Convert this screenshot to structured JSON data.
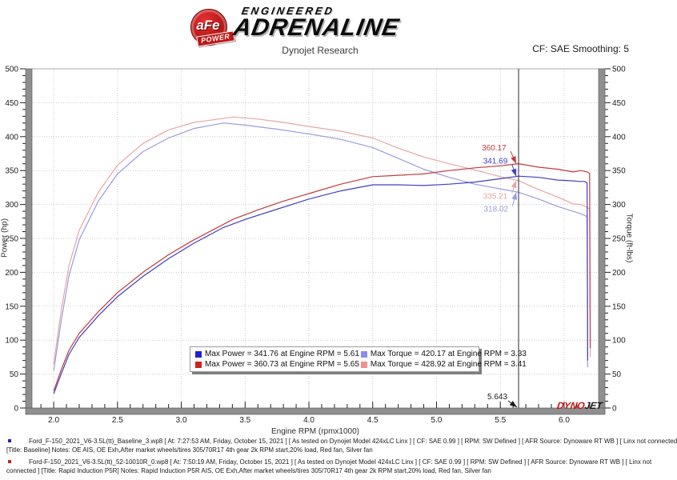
{
  "header": {
    "brand": {
      "badge_main": "aFe",
      "badge_sub": "POWER",
      "line1": "ENGINEERED",
      "line2": "ADRENALINE"
    },
    "report_title": "Dynojet Research",
    "smoothing_label": "CF: SAE Smoothing: 5"
  },
  "chart_data": {
    "type": "line",
    "xlabel": "Engine RPM (rpmx1000)",
    "ylabel_left": "Power (hp)",
    "ylabel_right": "Torque (ft-lbs)",
    "xlim": [
      1.83,
      6.27
    ],
    "ylim": [
      0,
      500
    ],
    "x_major_ticks": [
      2.0,
      2.5,
      3.0,
      3.5,
      4.0,
      4.5,
      5.0,
      5.5,
      6.0
    ],
    "x_minor_step": 0.1,
    "y_major_step": 50,
    "y_minor_step": 10,
    "grid": "dotted",
    "cursor": {
      "x": 5.643,
      "label": "5.643"
    },
    "series": [
      {
        "name": "torque-baseline",
        "unit": "ft-lbs",
        "color": "#9a9ae0",
        "x": [
          2.0,
          2.06,
          2.12,
          2.2,
          2.35,
          2.5,
          2.7,
          2.9,
          3.1,
          3.33,
          3.5,
          3.75,
          4.0,
          4.25,
          4.5,
          4.7,
          4.9,
          5.1,
          5.3,
          5.5,
          5.643,
          5.8,
          5.95,
          6.05,
          6.12,
          6.16,
          6.18,
          6.185
        ],
        "y": [
          55,
          130,
          195,
          248,
          305,
          345,
          378,
          398,
          412,
          420.2,
          417,
          411,
          404,
          396,
          384,
          368,
          352,
          340,
          330,
          323,
          318,
          308,
          297,
          291,
          287,
          284,
          282,
          60
        ]
      },
      {
        "name": "torque-rapid-induction",
        "unit": "ft-lbs",
        "color": "#eaa4a4",
        "x": [
          2.0,
          2.06,
          2.12,
          2.2,
          2.35,
          2.5,
          2.7,
          2.9,
          3.1,
          3.41,
          3.6,
          3.8,
          4.0,
          4.25,
          4.5,
          4.7,
          4.9,
          5.1,
          5.3,
          5.5,
          5.643,
          5.8,
          5.95,
          6.07,
          6.13,
          6.18,
          6.2,
          6.205
        ],
        "y": [
          65,
          145,
          210,
          262,
          318,
          358,
          390,
          410,
          421,
          428.9,
          426,
          421,
          415,
          408,
          398,
          383,
          370,
          360,
          351,
          341,
          335.2,
          322,
          311,
          301,
          300,
          296,
          293,
          75
        ]
      },
      {
        "name": "power-baseline",
        "unit": "hp",
        "color": "#4040c2",
        "x": [
          2.0,
          2.06,
          2.12,
          2.2,
          2.35,
          2.5,
          2.7,
          2.9,
          3.1,
          3.33,
          3.5,
          3.75,
          4.0,
          4.25,
          4.5,
          4.7,
          4.9,
          5.1,
          5.3,
          5.5,
          5.643,
          5.8,
          5.95,
          6.05,
          6.12,
          6.16,
          6.18,
          6.185
        ],
        "y": [
          21,
          51,
          79,
          104,
          136,
          164,
          194,
          220,
          243,
          266,
          278,
          293,
          308,
          320,
          329,
          329,
          328,
          330,
          333,
          338,
          341.7,
          340,
          336,
          335,
          334,
          334,
          332,
          70
        ]
      },
      {
        "name": "power-rapid-induction",
        "unit": "hp",
        "color": "#c23c3c",
        "x": [
          2.0,
          2.06,
          2.12,
          2.2,
          2.35,
          2.5,
          2.7,
          2.9,
          3.1,
          3.41,
          3.6,
          3.8,
          4.0,
          4.25,
          4.5,
          4.7,
          4.9,
          5.1,
          5.3,
          5.5,
          5.643,
          5.8,
          5.95,
          6.07,
          6.13,
          6.18,
          6.2,
          6.205
        ],
        "y": [
          25,
          57,
          85,
          110,
          142,
          170,
          200,
          226,
          248,
          278.5,
          292,
          305,
          316,
          330,
          341,
          343,
          345,
          350,
          354,
          357,
          360.2,
          355,
          352,
          348,
          350,
          348,
          346,
          88
        ]
      }
    ],
    "annotations": [
      {
        "text": "360.17",
        "color": "#c23c3c",
        "value": 360.2,
        "label_rpm": 5.355,
        "label_value": 383,
        "dir": "down"
      },
      {
        "text": "341.69",
        "color": "#4040c2",
        "value": 341.7,
        "label_rpm": 5.365,
        "label_value": 364,
        "dir": "down"
      },
      {
        "text": "335.21",
        "color": "#eaa4a4",
        "value": 335.2,
        "label_rpm": 5.365,
        "label_value": 312,
        "dir": "up"
      },
      {
        "text": "318.02",
        "color": "#9a9ae0",
        "value": 318.0,
        "label_rpm": 5.37,
        "label_value": 293,
        "dir": "up"
      }
    ],
    "legend": {
      "items": [
        {
          "color": "#2020cf",
          "label": "Max Power = 341.76 at Engine RPM = 5.61"
        },
        {
          "color": "#8c8cec",
          "label": "Max Torque = 420.17 at Engine RPM = 3.33"
        },
        {
          "color": "#cf2020",
          "label": "Max Power = 360.73 at Engine RPM = 5.65"
        },
        {
          "color": "#f09090",
          "label": "Max Torque = 428.92 at Engine RPM = 3.41"
        }
      ]
    },
    "watermark": {
      "part1": "DYNO",
      "part2": "JET",
      "color1": "#cc1111",
      "color2": "#1a1a1a"
    }
  },
  "footer": {
    "runs": [
      {
        "bullet_color": "#2222cc",
        "line1": "Ford_F-150_2021_V6-3.5L(tt)_Baseline_3.wp8 [ At: 7:27:53 AM, Friday, October 15, 2021 ] [ As tested on Dynojet Model 424xLC Linx ] [ CF: SAE 0.99 ] [ RPM: SW Defined ] [ AFR Source: Dynoware RT WB ] [ Linx not connected",
        "line2": "[Title: Baseline]  Notes: OE AIS, OE Exh,After market wheels/tires 305/70R17 4th gear 2k RPM start,20% load, Red fan, Silver fan"
      },
      {
        "bullet_color": "#cc2222",
        "line1": "Ford-F-150_2021_V6-3.5L(tt)_52-10010R_0.wp8 [ At: 7:50:19 AM, Friday, October 15, 2021 ] [ As tested on Dynojet Model 424xLC Linx ] [ CF: SAE 0.99 ] [ RPM: SW Defined ] [ AFR Source: Dynoware RT WB ] [ Linx not",
        "line2": "connected ] [Title: Rapid Induction P5R]  Notes: Rapid Induction P5R AIS, OE Exh,After market wheels/tires 305/70R17 4th gear 2k RPM start,20% load, Red fan, Silver fan"
      }
    ]
  }
}
